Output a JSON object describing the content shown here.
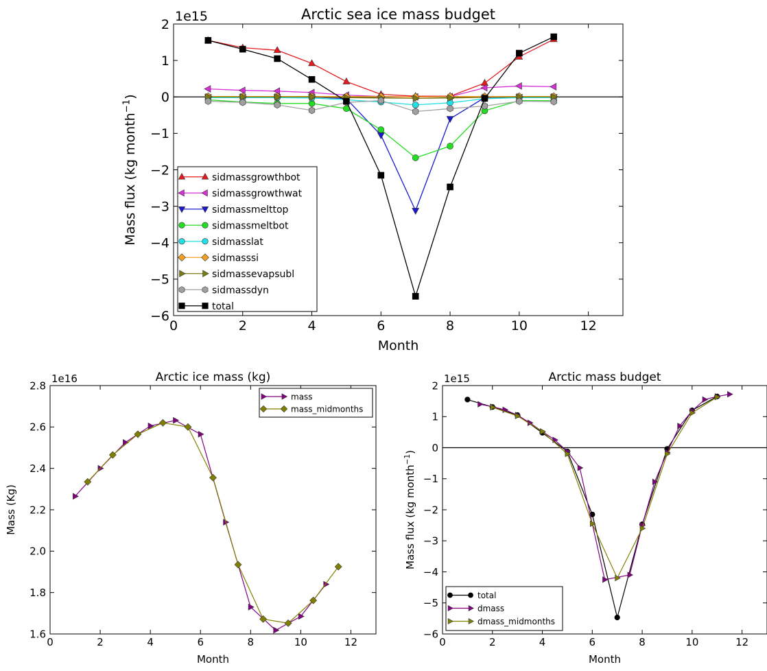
{
  "chart_data": [
    {
      "type": "line",
      "title": "Arctic sea ice mass budget",
      "xlabel": "Month",
      "ylabel": "Mass flux (kg month$^{-1}$)",
      "ylabel_main": "Mass flux (kg month",
      "ylabel_sup": "−1",
      "ylabel_close": ")",
      "offset_label": "1e15",
      "xlim": [
        0,
        13
      ],
      "ylim": [
        -6,
        2
      ],
      "xticks": [
        0,
        2,
        4,
        6,
        8,
        10,
        12
      ],
      "yticks": [
        -6,
        -5,
        -4,
        -3,
        -2,
        -1,
        0,
        1,
        2
      ],
      "zero_line": true,
      "legend_placement": "lower-left",
      "series": [
        {
          "name": "sidmassgrowthbot",
          "color": "#e41a1c",
          "marker": "triangle-up",
          "x": [
            1,
            2,
            3,
            4,
            5,
            6,
            7,
            8,
            9,
            10,
            11
          ],
          "y": [
            1.55,
            1.35,
            1.28,
            0.92,
            0.42,
            0.07,
            0.02,
            0.02,
            0.38,
            1.1,
            1.58
          ]
        },
        {
          "name": "sidmassgrowthwat",
          "color": "#d62fd6",
          "marker": "triangle-left",
          "x": [
            1,
            2,
            3,
            4,
            5,
            6,
            7,
            8,
            9,
            10,
            11
          ],
          "y": [
            0.22,
            0.18,
            0.16,
            0.12,
            0.05,
            0.01,
            0.0,
            0.01,
            0.25,
            0.3,
            0.28
          ]
        },
        {
          "name": "sidmassmelttop",
          "color": "#1a1acc",
          "marker": "triangle-down",
          "x": [
            1,
            2,
            3,
            4,
            5,
            6,
            7,
            8,
            9,
            10,
            11
          ],
          "y": [
            0.0,
            0.0,
            0.0,
            0.0,
            -0.05,
            -1.05,
            -3.12,
            -0.6,
            -0.02,
            0.0,
            0.0
          ]
        },
        {
          "name": "sidmassmeltbot",
          "color": "#22dd22",
          "marker": "circle",
          "x": [
            1,
            2,
            3,
            4,
            5,
            6,
            7,
            8,
            9,
            10,
            11
          ],
          "y": [
            -0.08,
            -0.14,
            -0.18,
            -0.18,
            -0.32,
            -0.9,
            -1.67,
            -1.35,
            -0.38,
            -0.1,
            -0.1
          ]
        },
        {
          "name": "sidmasslat",
          "color": "#20e0e8",
          "marker": "circle",
          "x": [
            1,
            2,
            3,
            4,
            5,
            6,
            7,
            8,
            9,
            10,
            11
          ],
          "y": [
            -0.02,
            -0.02,
            -0.02,
            -0.03,
            -0.08,
            -0.14,
            -0.22,
            -0.16,
            -0.05,
            -0.02,
            -0.02
          ]
        },
        {
          "name": "sidmasssi",
          "color": "#f5a020",
          "marker": "diamond",
          "x": [
            1,
            2,
            3,
            4,
            5,
            6,
            7,
            8,
            9,
            10,
            11
          ],
          "y": [
            0.01,
            0.01,
            0.01,
            0.01,
            0.01,
            0.01,
            0.0,
            0.01,
            0.01,
            0.01,
            0.01
          ]
        },
        {
          "name": "sidmassevapsubl",
          "color": "#7a7a10",
          "marker": "triangle-right",
          "x": [
            1,
            2,
            3,
            4,
            5,
            6,
            7,
            8,
            9,
            10,
            11
          ],
          "y": [
            0.0,
            0.0,
            0.0,
            0.0,
            -0.02,
            -0.03,
            -0.04,
            -0.03,
            -0.01,
            0.0,
            0.0
          ]
        },
        {
          "name": "sidmassdyn",
          "color": "#a0a0a0",
          "marker": "hexagon",
          "x": [
            1,
            2,
            3,
            4,
            5,
            6,
            7,
            8,
            9,
            10,
            11
          ],
          "y": [
            -0.12,
            -0.15,
            -0.22,
            -0.37,
            -0.15,
            -0.1,
            -0.4,
            -0.32,
            -0.25,
            -0.12,
            -0.13
          ]
        },
        {
          "name": "total",
          "color": "#000000",
          "marker": "square",
          "x": [
            1,
            2,
            3,
            4,
            5,
            6,
            7,
            8,
            9,
            10,
            11
          ],
          "y": [
            1.55,
            1.31,
            1.05,
            0.48,
            -0.12,
            -2.15,
            -5.47,
            -2.47,
            -0.04,
            1.2,
            1.65
          ]
        }
      ]
    },
    {
      "type": "line",
      "title": "Arctic ice mass (kg)",
      "xlabel": "Month",
      "ylabel": "Mass (Kg)",
      "offset_label": "1e16",
      "xlim": [
        0,
        13
      ],
      "ylim": [
        1.6,
        2.8
      ],
      "xticks": [
        0,
        2,
        4,
        6,
        8,
        10,
        12
      ],
      "yticks": [
        1.6,
        1.8,
        2.0,
        2.2,
        2.4,
        2.6,
        2.8
      ],
      "ytick_labels": [
        "1.6",
        "1.8",
        "2.0",
        "2.2",
        "2.4",
        "2.6",
        "2.8"
      ],
      "legend_placement": "top-right",
      "series": [
        {
          "name": "mass",
          "color": "#800080",
          "marker": "triangle-right",
          "x": [
            1,
            2,
            3,
            4,
            5,
            6,
            7,
            8,
            9,
            10,
            11
          ],
          "y": [
            2.265,
            2.4,
            2.525,
            2.605,
            2.632,
            2.565,
            2.14,
            1.73,
            1.618,
            1.685,
            1.84
          ]
        },
        {
          "name": "mass_midmonths",
          "color": "#808000",
          "marker": "diamond",
          "x": [
            1.5,
            2.5,
            3.5,
            4.5,
            5.5,
            6.5,
            7.5,
            8.5,
            9.5,
            10.5,
            11.5
          ],
          "y": [
            2.335,
            2.465,
            2.565,
            2.62,
            2.6,
            2.355,
            1.935,
            1.672,
            1.652,
            1.762,
            1.925
          ]
        }
      ]
    },
    {
      "type": "line",
      "title": "Arctic mass budget",
      "xlabel": "Month",
      "ylabel_main": "Mass flux (kg month",
      "ylabel_sup": "−1",
      "ylabel_close": ")",
      "offset_label": "1e15",
      "xlim": [
        0,
        13
      ],
      "ylim": [
        -6,
        2
      ],
      "xticks": [
        0,
        2,
        4,
        6,
        8,
        10,
        12
      ],
      "yticks": [
        -6,
        -5,
        -4,
        -3,
        -2,
        -1,
        0,
        1,
        2
      ],
      "zero_line": true,
      "legend_placement": "lower-left",
      "series": [
        {
          "name": "total",
          "color": "#000000",
          "marker": "circle",
          "x": [
            1,
            2,
            3,
            4,
            5,
            6,
            7,
            8,
            9,
            10,
            11
          ],
          "y": [
            1.55,
            1.31,
            1.05,
            0.48,
            -0.12,
            -2.15,
            -5.47,
            -2.47,
            -0.04,
            1.2,
            1.65
          ]
        },
        {
          "name": "dmass",
          "color": "#800080",
          "marker": "triangle-right",
          "x": [
            1.5,
            2,
            2.5,
            3,
            3.5,
            4,
            4.5,
            5,
            5.5,
            6.5,
            7.5,
            8,
            8.5,
            9,
            9.5,
            10,
            10.5,
            11,
            11.5
          ],
          "y": [
            1.4,
            1.32,
            1.22,
            1.05,
            0.8,
            0.52,
            0.25,
            -0.12,
            -0.65,
            -4.25,
            -4.1,
            -2.5,
            -1.1,
            -0.15,
            0.7,
            1.18,
            1.55,
            1.65,
            1.72
          ]
        },
        {
          "name": "dmass_midmonths",
          "color": "#808000",
          "marker": "triangle-right",
          "x": [
            2,
            3,
            4,
            5,
            6,
            7,
            8,
            9,
            10,
            11
          ],
          "y": [
            1.3,
            1.02,
            0.52,
            -0.2,
            -2.45,
            -4.2,
            -2.6,
            -0.2,
            1.12,
            1.63
          ]
        }
      ]
    }
  ]
}
